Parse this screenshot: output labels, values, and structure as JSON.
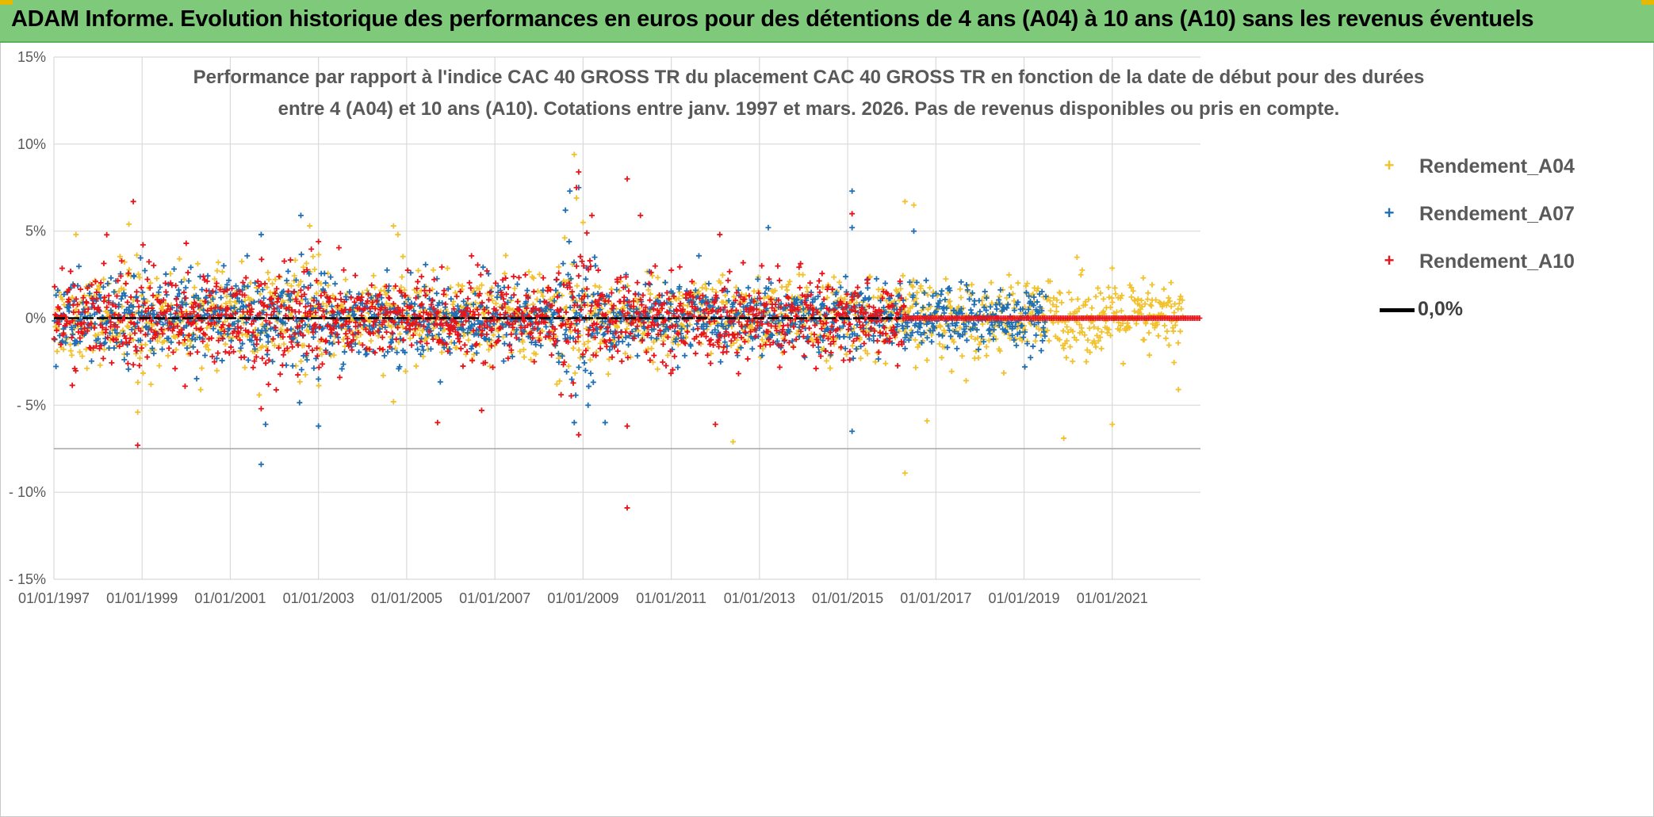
{
  "header": {
    "title": "ADAM Informe. Evolution historique des performances en euros pour des détentions de 4 ans (A04) à 10 ans (A10) sans les revenus éventuels"
  },
  "chart_data": {
    "type": "scatter",
    "title_line1": "Performance par rapport à l'indice CAC 40 GROSS TR  du placement CAC 40 GROSS TR en fonction de la date de début pour des durées",
    "title_line2": "entre 4 (A04) et 10 ans (A10). Cotations entre janv. 1997 et mars. 2026. Pas de revenus disponibles ou pris en compte.",
    "xlabel": "",
    "ylabel": "",
    "xlim": [
      1997.0,
      2023.0
    ],
    "ylim": [
      -15,
      15
    ],
    "y_ticks": [
      {
        "value": 15,
        "label": "15%"
      },
      {
        "value": 10,
        "label": "10%"
      },
      {
        "value": 5,
        "label": "5%"
      },
      {
        "value": 0,
        "label": "0%"
      },
      {
        "value": -5,
        "label": "- 5%"
      },
      {
        "value": -10,
        "label": "- 10%"
      },
      {
        "value": -15,
        "label": "- 15%"
      }
    ],
    "x_ticks": [
      {
        "value": 1997,
        "label": "01/01/1997"
      },
      {
        "value": 1999,
        "label": "01/01/1999"
      },
      {
        "value": 2001,
        "label": "01/01/2001"
      },
      {
        "value": 2003,
        "label": "01/01/2003"
      },
      {
        "value": 2005,
        "label": "01/01/2005"
      },
      {
        "value": 2007,
        "label": "01/01/2007"
      },
      {
        "value": 2009,
        "label": "01/01/2009"
      },
      {
        "value": 2011,
        "label": "01/01/2011"
      },
      {
        "value": 2013,
        "label": "01/01/2013"
      },
      {
        "value": 2015,
        "label": "01/01/2015"
      },
      {
        "value": 2017,
        "label": "01/01/2017"
      },
      {
        "value": 2019,
        "label": "01/01/2019"
      },
      {
        "value": 2021,
        "label": "01/01/2021"
      }
    ],
    "extra_hline": -7.5,
    "zero_line": {
      "value": 0,
      "label": "0,0%"
    },
    "series": [
      {
        "name": "Rendement_A04",
        "color": "#f2c12e",
        "x_range": [
          1997.0,
          2022.6
        ],
        "spread_early": 1.6,
        "spread_late": 1.4,
        "outliers": [
          [
            1997.5,
            4.8
          ],
          [
            1998.7,
            5.4
          ],
          [
            1998.9,
            -5.4
          ],
          [
            1999.2,
            -3.8
          ],
          [
            2002.8,
            5.3
          ],
          [
            2004.7,
            5.3
          ],
          [
            2004.8,
            4.8
          ],
          [
            2004.7,
            -4.8
          ],
          [
            2008.8,
            9.4
          ],
          [
            2008.85,
            6.9
          ],
          [
            2009.0,
            5.5
          ],
          [
            2012.4,
            -7.1
          ],
          [
            2016.3,
            6.7
          ],
          [
            2016.5,
            6.5
          ],
          [
            2016.3,
            -8.9
          ],
          [
            2016.8,
            -5.9
          ],
          [
            2019.9,
            -6.9
          ],
          [
            2021.0,
            -6.1
          ],
          [
            2022.5,
            -4.1
          ],
          [
            2020.2,
            3.5
          ]
        ]
      },
      {
        "name": "Rendement_A07",
        "color": "#1f6fb5",
        "x_range": [
          1997.0,
          2019.5
        ],
        "spread_early": 1.6,
        "spread_late": 1.2,
        "outliers": [
          [
            2001.7,
            -8.4
          ],
          [
            2002.6,
            5.9
          ],
          [
            2001.7,
            4.8
          ],
          [
            2003.0,
            -6.2
          ],
          [
            2008.7,
            7.3
          ],
          [
            2008.6,
            6.2
          ],
          [
            2008.9,
            7.5
          ],
          [
            2008.8,
            -6.0
          ],
          [
            2015.1,
            7.3
          ],
          [
            2015.1,
            5.2
          ],
          [
            2015.1,
            -6.5
          ],
          [
            2013.2,
            5.2
          ],
          [
            2016.5,
            5.0
          ],
          [
            2009.5,
            -6.0
          ],
          [
            2001.8,
            -6.1
          ]
        ]
      },
      {
        "name": "Rendement_A10",
        "color": "#e8141a",
        "x_range": [
          1997.0,
          2016.3
        ],
        "spread_early": 1.7,
        "spread_late": 1.5,
        "outliers": [
          [
            1998.8,
            6.7
          ],
          [
            1998.9,
            -7.3
          ],
          [
            2008.9,
            8.4
          ],
          [
            2008.85,
            7.5
          ],
          [
            2008.9,
            -6.7
          ],
          [
            2010.0,
            8.0
          ],
          [
            2010.3,
            5.9
          ],
          [
            2010.0,
            -10.9
          ],
          [
            2001.7,
            -5.2
          ],
          [
            2000.0,
            4.3
          ],
          [
            2003.0,
            4.4
          ],
          [
            2005.7,
            -6.0
          ],
          [
            2006.7,
            -5.3
          ],
          [
            2012.1,
            4.8
          ],
          [
            2015.1,
            6.0
          ],
          [
            2009.2,
            5.9
          ],
          [
            2010.0,
            -6.2
          ],
          [
            2012.0,
            -6.1
          ]
        ],
        "flat_after": [
          2016.3,
          2023.0
        ]
      }
    ]
  }
}
